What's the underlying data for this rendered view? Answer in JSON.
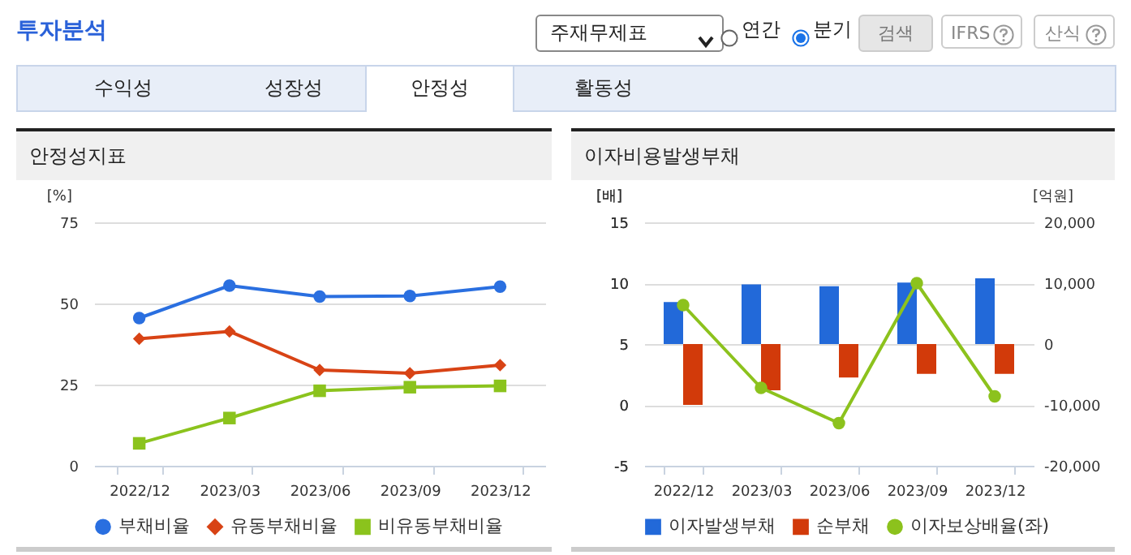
{
  "chart_data": [
    {
      "type": "other",
      "title": "투자분석",
      "annotations": [
        "주재무제표",
        "연간",
        "분기",
        "검색",
        "IFRS",
        "산식",
        "수익성",
        "성장성",
        "안정성",
        "활동성"
      ]
    },
    {
      "type": "line",
      "title": "안정성지표",
      "ylabel": "[%]",
      "categories": [
        "2022/12",
        "2023/03",
        "2023/06",
        "2023/09",
        "2023/12"
      ],
      "series": [
        {
          "name": "부채비율",
          "color": "#2a6fe0",
          "marker": "circle",
          "values": [
            45.5,
            55.5,
            52.1,
            52.3,
            55.2
          ]
        },
        {
          "name": "유동부채비율",
          "color": "#d84315",
          "marker": "diamond",
          "values": [
            39.1,
            41.4,
            29.5,
            28.5,
            31.0
          ]
        },
        {
          "name": "비유동부채비율",
          "color": "#8bc31d",
          "marker": "square",
          "values": [
            6.9,
            14.7,
            23.1,
            24.2,
            24.6
          ]
        }
      ],
      "ylim": [
        0,
        75
      ],
      "yticks": [
        0,
        25,
        50,
        75
      ],
      "grid": "y",
      "legend": "bottom",
      "line_style": "solid"
    },
    {
      "type": "bar",
      "title": "이자비용발생부채",
      "ylabel": "[배]",
      "y2label": "[억원]",
      "categories": [
        "2022/12",
        "2023/03",
        "2023/06",
        "2023/09",
        "2023/12"
      ],
      "series": [
        {
          "name": "이자발생부채",
          "color": "#2269d9",
          "axis": "y2",
          "values": [
            6900,
            9800,
            9500,
            10100,
            10800
          ]
        },
        {
          "name": "순부채",
          "color": "#d23a0a",
          "axis": "y2",
          "values": [
            -10000,
            -7600,
            -5500,
            -4900,
            -4900
          ]
        },
        {
          "name": "이자보상배율(좌)",
          "type": "line",
          "color": "#8cc21d",
          "marker": "circle",
          "values": [
            8.2,
            1.4,
            -1.5,
            10.0,
            0.7
          ]
        }
      ],
      "ylim": [
        -5,
        15
      ],
      "yticks": [
        -5,
        0,
        5,
        10,
        15
      ],
      "y2lim": [
        -20000,
        20000
      ],
      "y2ticks": [
        {
          "value": -20000,
          "label": "-20,000"
        },
        {
          "value": -10000,
          "label": "-10,000"
        },
        0,
        {
          "value": 10000,
          "label": "10,000"
        },
        {
          "value": 20000,
          "label": "20,000"
        }
      ],
      "grid": "y",
      "legend": "bottom"
    }
  ]
}
